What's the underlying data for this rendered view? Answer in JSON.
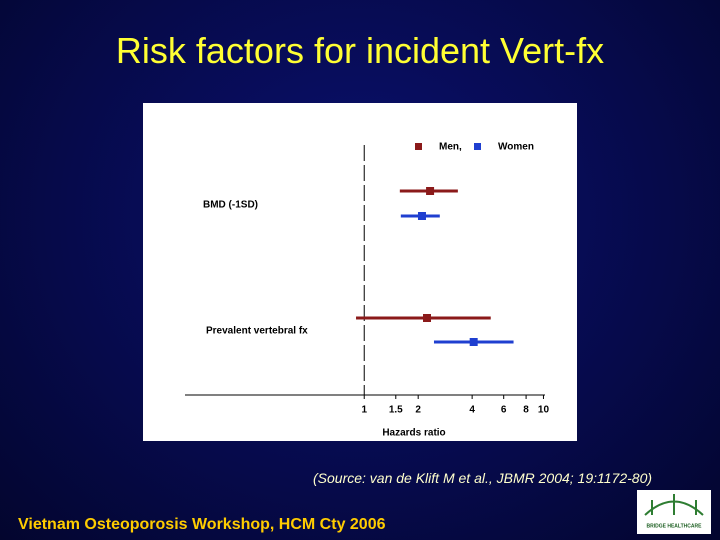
{
  "title": "Risk factors for incident Vert-fx",
  "source": "(Source: van de Klift M et al., JBMR 2004; 19:1172-80)",
  "footer": "Vietnam Osteoporosis Workshop, HCM Cty 2006",
  "logo_text": "BRIDGE HEALTHCARE",
  "chart_data": {
    "type": "forest",
    "x_label": "Hazards ratio",
    "categories": [
      "BMD (-1SD)",
      "Prevalent vertebral fx"
    ],
    "series": [
      {
        "name": "Men,",
        "color": "#8b1a1a",
        "values": [
          2.33,
          2.24
        ],
        "lower": [
          1.58,
          0.9
        ],
        "upper": [
          3.33,
          5.08
        ]
      },
      {
        "name": "Women",
        "color": "#1f3fd0",
        "values": [
          2.1,
          4.08
        ],
        "lower": [
          1.6,
          2.45
        ],
        "upper": [
          2.64,
          6.81
        ]
      }
    ],
    "xlim": [
      0.1,
      10.2
    ],
    "xticks": [
      1,
      1.5,
      2,
      4,
      6,
      8,
      10
    ],
    "log_x": true
  }
}
